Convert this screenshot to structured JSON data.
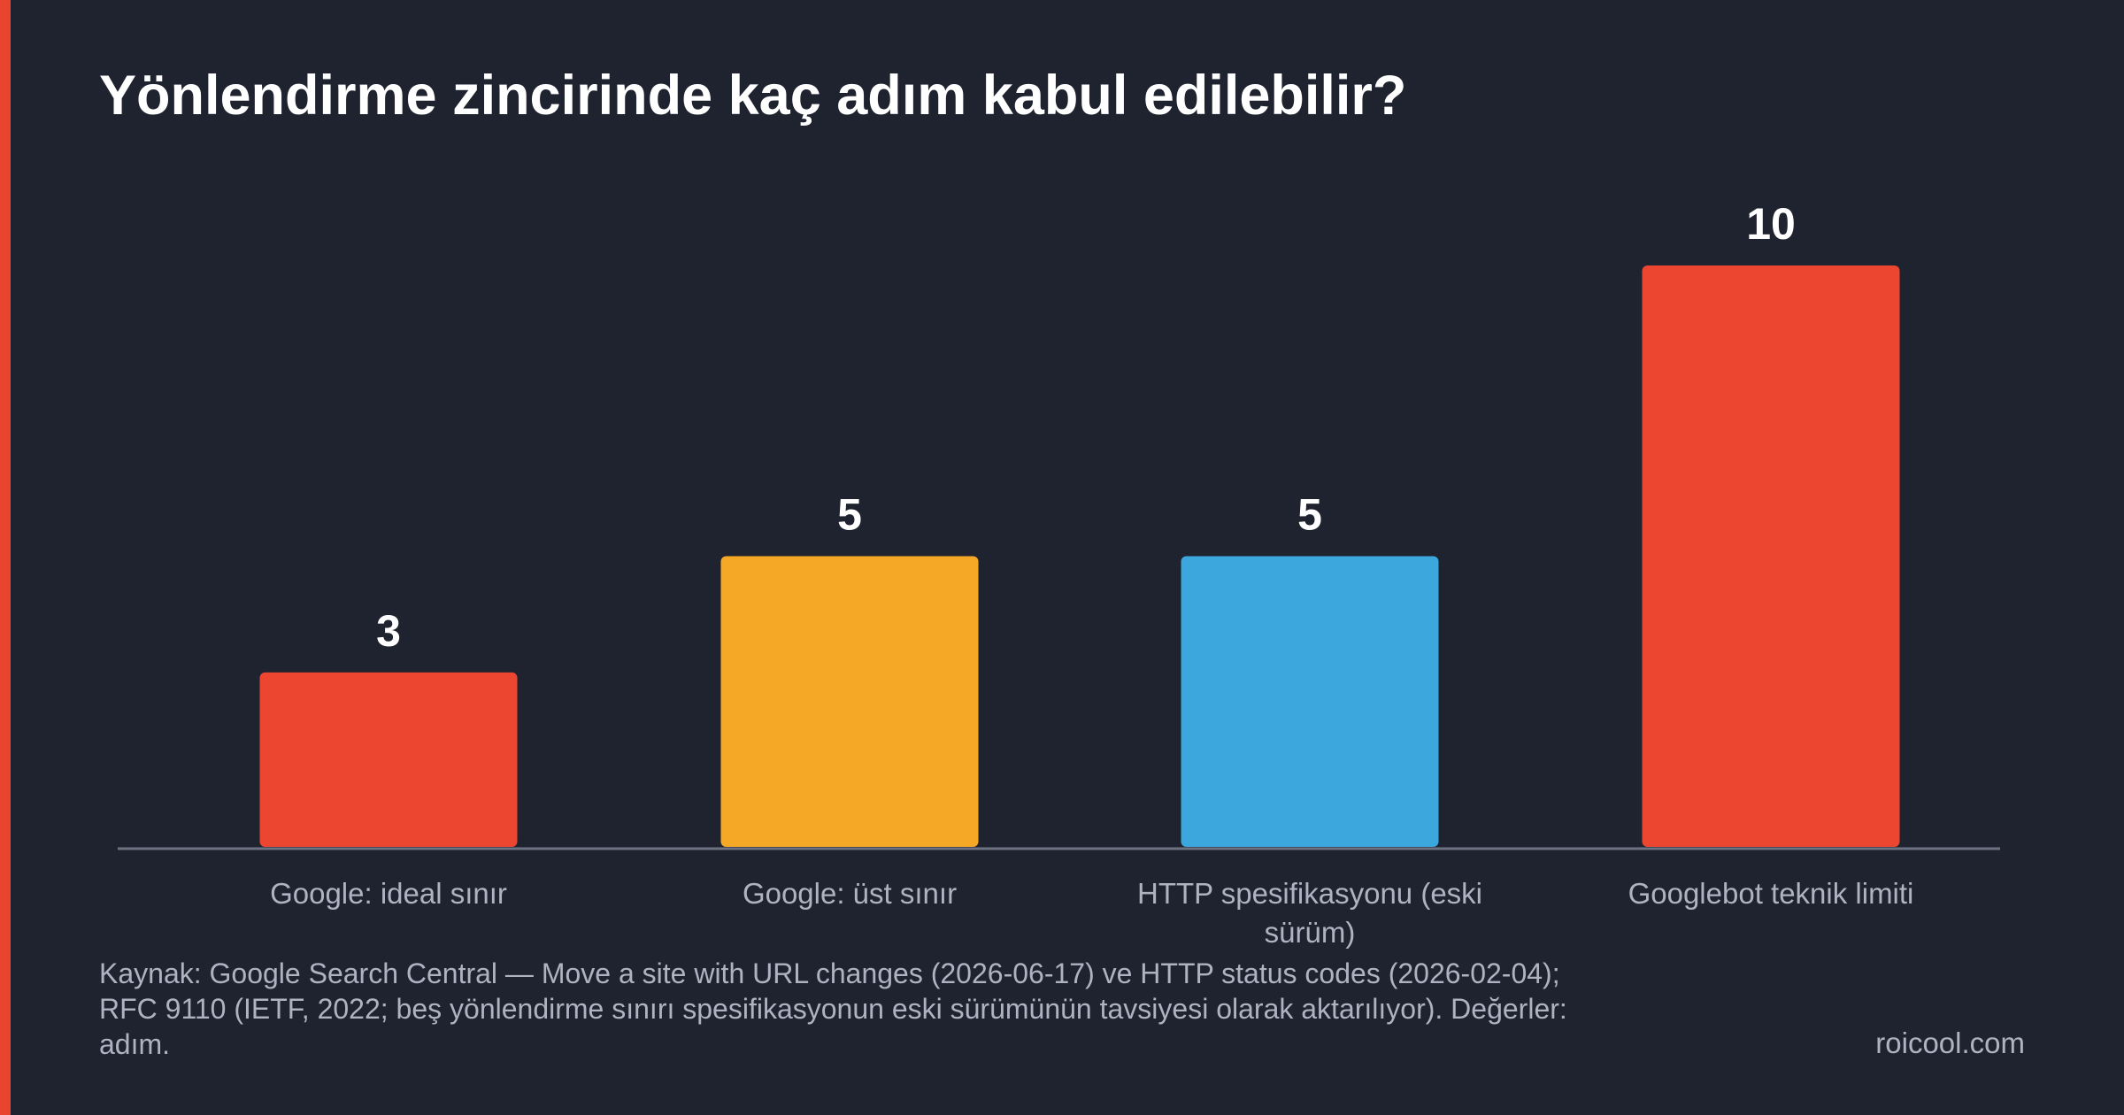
{
  "chart_data": {
    "type": "bar",
    "title": "Yönlendirme zincirinde kaç adım kabul edilebilir?",
    "categories": [
      "Google: ideal sınır",
      "Google: üst sınır",
      "HTTP spesifikasyonu (eski sürüm)",
      "Googlebot teknik limiti"
    ],
    "values": [
      3,
      5,
      5,
      10
    ],
    "colors": [
      "#ec4530",
      "#f4a826",
      "#3ca7dc",
      "#ec4530"
    ],
    "source": "Kaynak: Google Search Central — Move a site with URL changes (2026-06-17) ve HTTP status codes (2026-02-04); RFC 9110 (IETF, 2022; beş yönlendirme sınırı spesifikasyonun eski sürümünün tavsiyesi olarak aktarılıyor). Değerler: adım.",
    "brand": "roicool.com"
  }
}
